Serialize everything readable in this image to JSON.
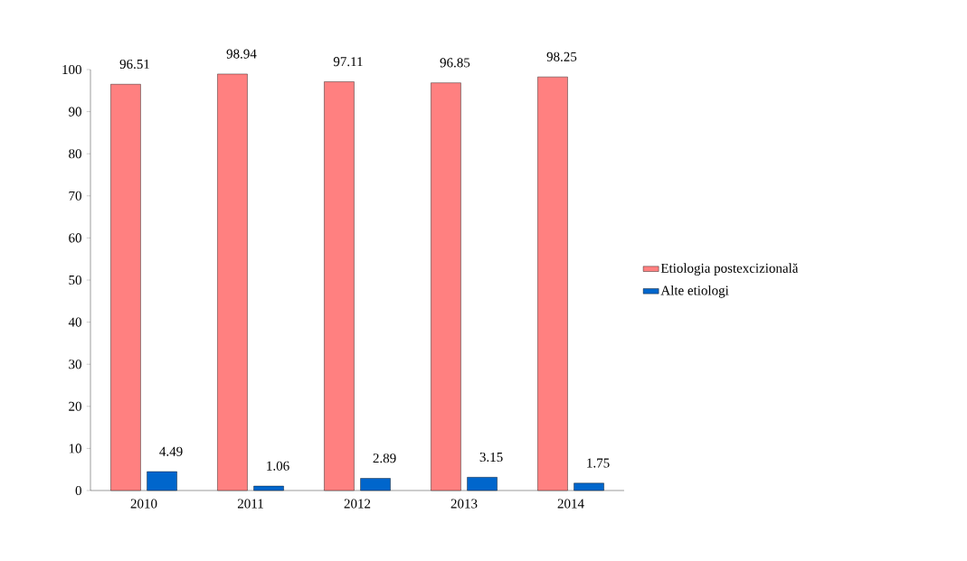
{
  "chart_data": {
    "type": "bar",
    "categories": [
      "2010",
      "2011",
      "2012",
      "2013",
      "2014"
    ],
    "series": [
      {
        "name": "Etiologia postexcizională",
        "color": "#ff8080",
        "values": [
          96.51,
          98.94,
          97.11,
          96.85,
          98.25
        ]
      },
      {
        "name": "Alte etiologi",
        "color": "#0066cc",
        "values": [
          4.49,
          1.06,
          2.89,
          3.15,
          1.75
        ]
      }
    ],
    "ylim": [
      0,
      100
    ],
    "yticks": [
      0,
      10,
      20,
      30,
      40,
      50,
      60,
      70,
      80,
      90,
      100
    ],
    "data_labels": true,
    "legend": "right"
  }
}
